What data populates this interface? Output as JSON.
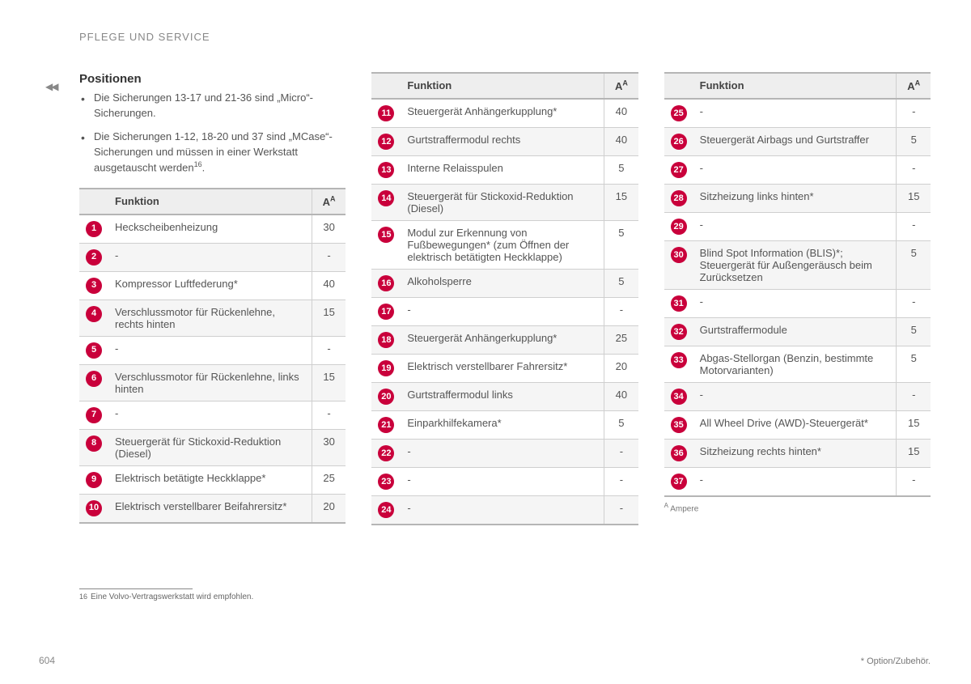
{
  "header": "PFLEGE UND SERVICE",
  "sectionTitle": "Positionen",
  "bullets": [
    "Die Sicherungen 13-17 und 21-36 sind „Micro“-Sicherungen.",
    "Die Sicherungen 1-12, 18-20 und 37 sind „MCase“-Sicherungen und müssen in einer Werkstatt ausgetauscht werden"
  ],
  "bullet2_sup": "16",
  "tableHeader": {
    "func": "Funktion",
    "amp": "A",
    "ampSup": "A"
  },
  "tables": [
    [
      {
        "n": "1",
        "f": "Heckscheibenheizung",
        "a": "30"
      },
      {
        "n": "2",
        "f": "-",
        "a": "-"
      },
      {
        "n": "3",
        "f": "Kompressor Luftfederung*",
        "a": "40"
      },
      {
        "n": "4",
        "f": "Verschlussmotor für Rückenlehne, rechts hinten",
        "a": "15"
      },
      {
        "n": "5",
        "f": "-",
        "a": "-"
      },
      {
        "n": "6",
        "f": "Verschlussmotor für Rückenlehne, links hinten",
        "a": "15"
      },
      {
        "n": "7",
        "f": "-",
        "a": "-"
      },
      {
        "n": "8",
        "f": "Steuergerät für Stickoxid-Reduktion (Diesel)",
        "a": "30"
      },
      {
        "n": "9",
        "f": "Elektrisch betätigte Heckklappe*",
        "a": "25"
      },
      {
        "n": "10",
        "f": "Elektrisch verstellbarer Beifahrersitz*",
        "a": "20"
      }
    ],
    [
      {
        "n": "11",
        "f": "Steuergerät Anhängerkupplung*",
        "a": "40"
      },
      {
        "n": "12",
        "f": "Gurtstraffermodul rechts",
        "a": "40"
      },
      {
        "n": "13",
        "f": "Interne Relaisspulen",
        "a": "5"
      },
      {
        "n": "14",
        "f": "Steuergerät für Stickoxid-Reduktion (Diesel)",
        "a": "15"
      },
      {
        "n": "15",
        "f": "Modul zur Erkennung von Fußbewegungen* (zum Öffnen der elektrisch betätigten Heckklappe)",
        "a": "5"
      },
      {
        "n": "16",
        "f": "Alkoholsperre",
        "a": "5"
      },
      {
        "n": "17",
        "f": "-",
        "a": "-"
      },
      {
        "n": "18",
        "f": "Steuergerät Anhängerkupplung*",
        "a": "25"
      },
      {
        "n": "19",
        "f": "Elektrisch verstellbarer Fahrersitz*",
        "a": "20"
      },
      {
        "n": "20",
        "f": "Gurtstraffermodul links",
        "a": "40"
      },
      {
        "n": "21",
        "f": "Einparkhilfekamera*",
        "a": "5"
      },
      {
        "n": "22",
        "f": "-",
        "a": "-"
      },
      {
        "n": "23",
        "f": "-",
        "a": "-"
      },
      {
        "n": "24",
        "f": "-",
        "a": "-"
      }
    ],
    [
      {
        "n": "25",
        "f": "-",
        "a": "-"
      },
      {
        "n": "26",
        "f": "Steuergerät Airbags und Gurtstraffer",
        "a": "5"
      },
      {
        "n": "27",
        "f": "-",
        "a": "-"
      },
      {
        "n": "28",
        "f": "Sitzheizung links hinten*",
        "a": "15"
      },
      {
        "n": "29",
        "f": "-",
        "a": "-"
      },
      {
        "n": "30",
        "f": "Blind Spot Information (BLIS)*; Steuergerät für Außengeräusch beim Zurücksetzen",
        "a": "5"
      },
      {
        "n": "31",
        "f": "-",
        "a": "-"
      },
      {
        "n": "32",
        "f": "Gurtstraffermodule",
        "a": "5"
      },
      {
        "n": "33",
        "f": "Abgas-Stellorgan (Benzin, bestimmte Motorvarianten)",
        "a": "5"
      },
      {
        "n": "34",
        "f": "-",
        "a": "-"
      },
      {
        "n": "35",
        "f": "All Wheel Drive (AWD)-Steuergerät*",
        "a": "15"
      },
      {
        "n": "36",
        "f": "Sitzheizung rechts hinten*",
        "a": "15"
      },
      {
        "n": "37",
        "f": "-",
        "a": "-"
      }
    ]
  ],
  "legend": {
    "sup": "A",
    "text": "Ampere"
  },
  "footnote": {
    "num": "16",
    "text": "Eine Volvo-Vertragswerkstatt wird empfohlen."
  },
  "pageNumber": "604",
  "bottomNote": "* Option/Zubehör."
}
